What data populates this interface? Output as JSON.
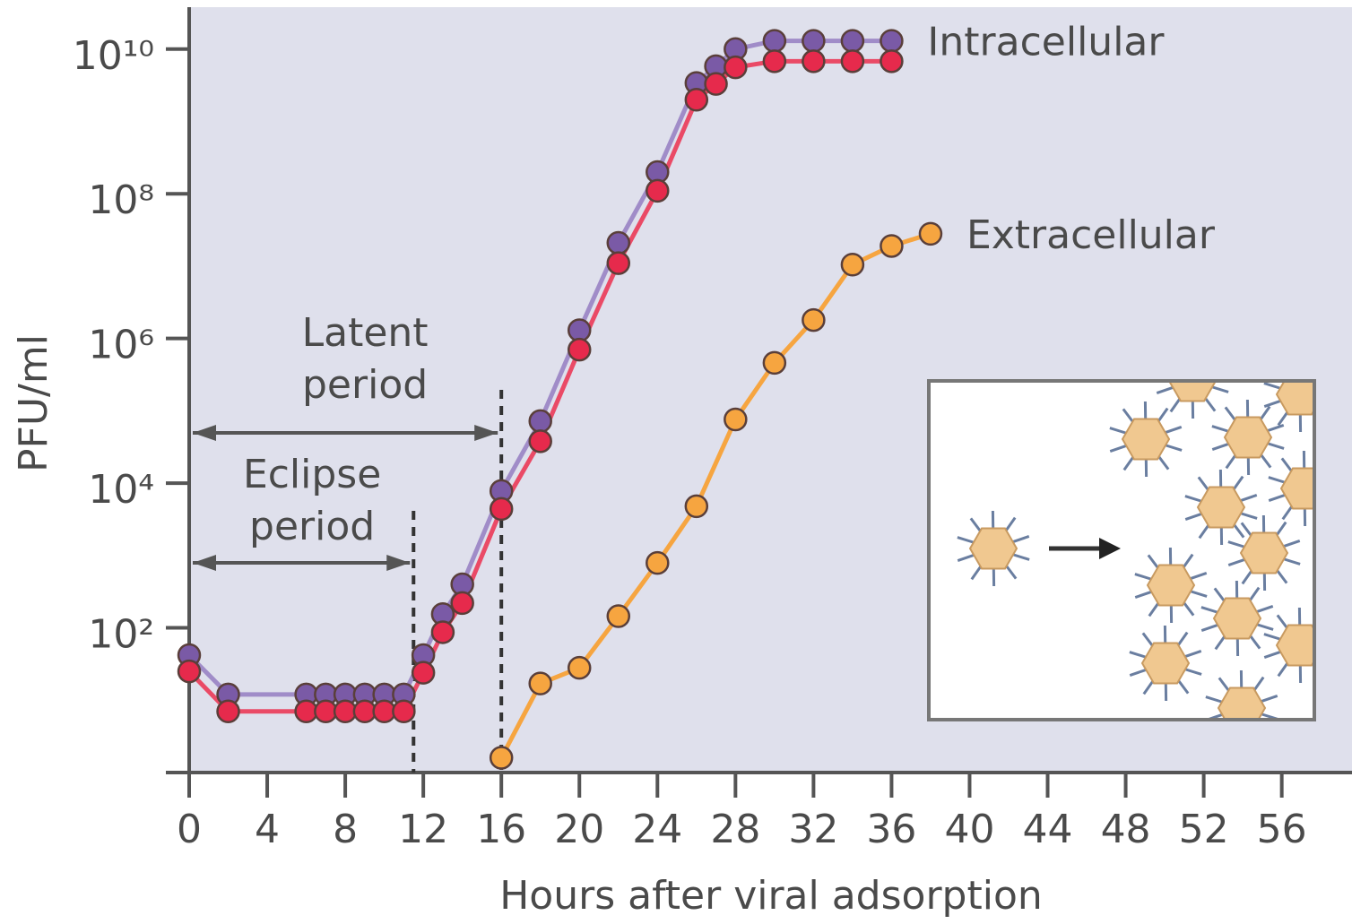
{
  "chart_data": {
    "type": "line",
    "xlabel": "Hours after viral adsorption",
    "ylabel": "PFU/ml",
    "log_y": true,
    "xlim": [
      0,
      59.6
    ],
    "ylim": [
      1,
      38000000000
    ],
    "xticks": [
      0,
      4,
      8,
      12,
      16,
      20,
      24,
      28,
      32,
      36,
      40,
      44,
      48,
      52,
      56
    ],
    "yticks": [
      {
        "value": 100,
        "label": "10²"
      },
      {
        "value": 10000,
        "label": "10⁴"
      },
      {
        "value": 1000000,
        "label": "10⁶"
      },
      {
        "value": 100000000,
        "label": "10⁸"
      },
      {
        "value": 10000000000,
        "label": "10¹⁰"
      }
    ],
    "periods": [
      {
        "label_lines": [
          "Eclipse",
          "period"
        ],
        "end": 11.5
      },
      {
        "label_lines": [
          "Latent",
          "period"
        ],
        "end": 16
      }
    ],
    "series": [
      {
        "name": "Intracellular",
        "color": "#7a5aa6",
        "line_color": "#a08cc8",
        "x": [
          0,
          2,
          6,
          7,
          8,
          9,
          10,
          11,
          12,
          13,
          14,
          16,
          18,
          20,
          22,
          24,
          26,
          27,
          28,
          30,
          32,
          34,
          36
        ],
        "values": [
          42,
          12,
          12,
          12,
          12,
          12,
          12,
          12,
          42,
          155,
          400,
          7800,
          72000,
          1300000,
          21000000,
          200000000,
          3400000000,
          5800000000,
          10000000000,
          13000000000,
          13000000000,
          13000000000,
          13000000000
        ]
      },
      {
        "color": "#e62a4c",
        "line_color": "#ea4a66",
        "x": [
          0,
          2,
          6,
          7,
          8,
          9,
          10,
          11,
          12,
          13,
          14,
          16,
          18,
          20,
          22,
          24,
          26,
          27,
          28,
          30,
          32,
          34,
          36
        ],
        "values": [
          25,
          7,
          7,
          7,
          7,
          7,
          7,
          7,
          24,
          87,
          220,
          4400,
          38000,
          700000,
          11000000,
          110000000,
          2000000000,
          3300000000,
          5600000000,
          6800000000,
          6800000000,
          6800000000,
          6800000000
        ]
      },
      {
        "name": "Extracellular",
        "color": "#f6a540",
        "line_color": "#f6a540",
        "x": [
          16,
          18,
          20,
          22,
          24,
          26,
          28,
          30,
          32,
          34,
          36,
          38
        ],
        "values": [
          1.6,
          17,
          28,
          145,
          790,
          4800,
          76000,
          460000,
          1800000,
          10500000,
          19000000,
          28000000
        ]
      }
    ]
  }
}
